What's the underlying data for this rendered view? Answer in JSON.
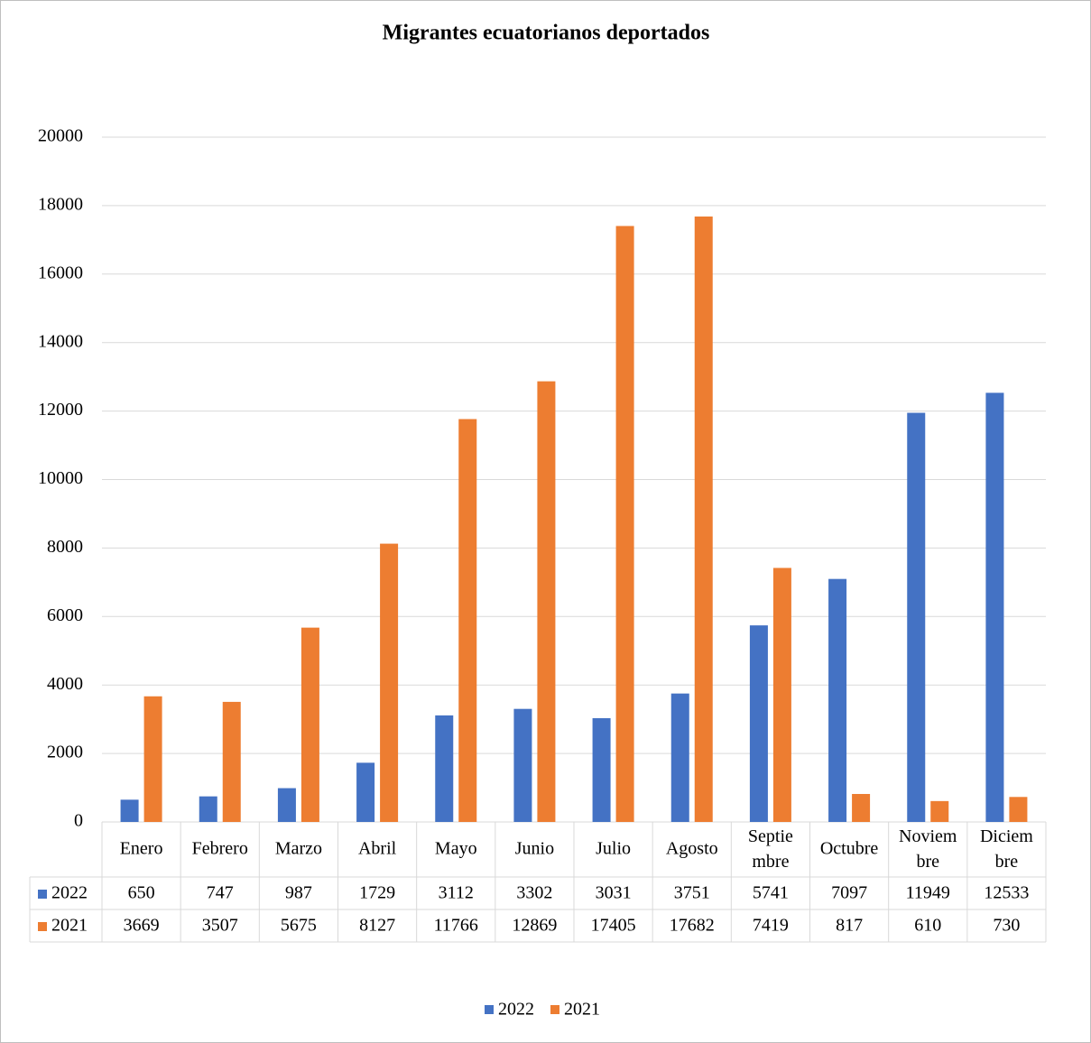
{
  "chart_data": {
    "type": "bar",
    "title": "Migrantes ecuatorianos deportados",
    "categories": [
      "Enero",
      "Febrero",
      "Marzo",
      "Abril",
      "Mayo",
      "Junio",
      "Julio",
      "Agosto",
      "Septiembre",
      "Octubre",
      "Noviembre",
      "Diciembre"
    ],
    "series": [
      {
        "name": "2022",
        "color": "#4472c4",
        "values": [
          650,
          747,
          987,
          1729,
          3112,
          3302,
          3031,
          3751,
          5741,
          7097,
          11949,
          12533
        ]
      },
      {
        "name": "2021",
        "color": "#ed7d31",
        "values": [
          3669,
          3507,
          5675,
          8127,
          11766,
          12869,
          17405,
          17682,
          7419,
          817,
          610,
          730
        ]
      }
    ],
    "ylim": [
      0,
      20000
    ],
    "yticks": [
      0,
      2000,
      4000,
      6000,
      8000,
      10000,
      12000,
      14000,
      16000,
      18000,
      20000
    ],
    "grid": true,
    "legend": "bottom",
    "data_table": true
  }
}
